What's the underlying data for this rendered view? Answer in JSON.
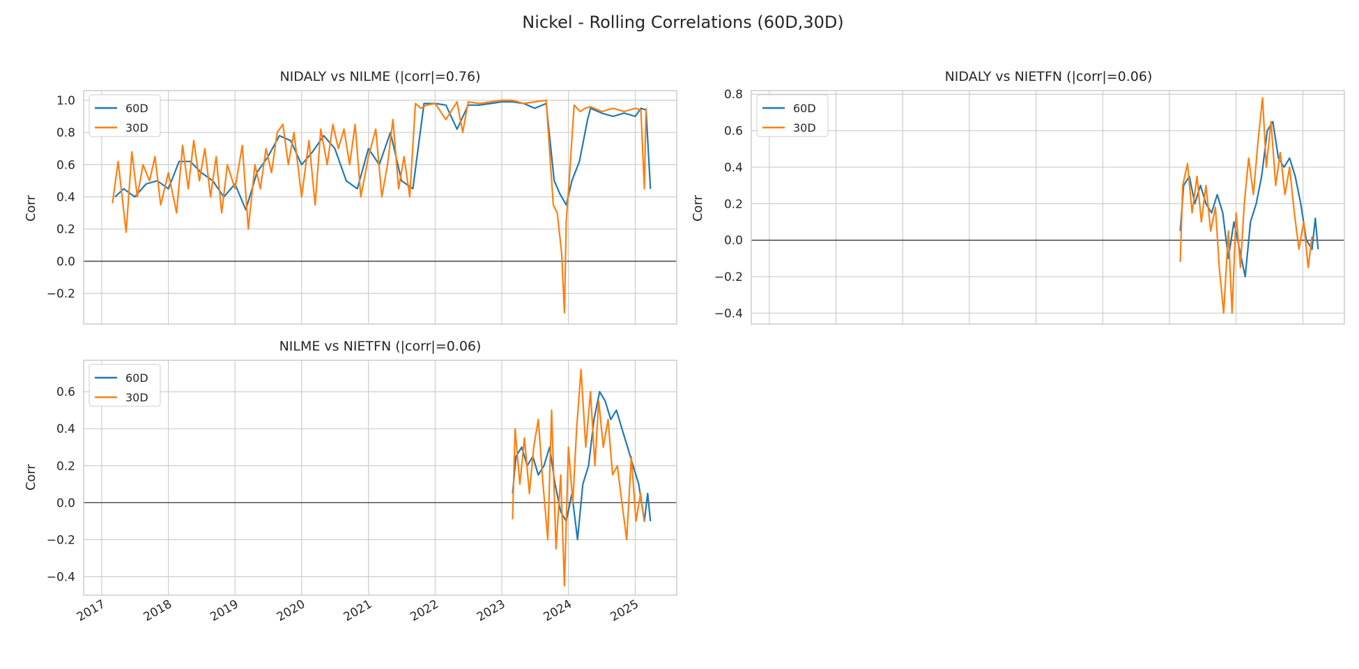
{
  "figure": {
    "suptitle": "Nickel - Rolling Correlations (60D,30D)"
  },
  "colors": {
    "series_60d": "#1f77b4",
    "series_30d": "#ff7f0e",
    "grid": "#cccccc",
    "zero_line": "#262626",
    "axes_edge": "#cccccc"
  },
  "chart_data": [
    {
      "type": "line",
      "title": "NIDALY vs NILME (|corr|=0.76)",
      "xlabel": "",
      "ylabel": "Corr",
      "xlim": [
        "2016-09-24",
        "2025-08-16"
      ],
      "ylim": [
        -0.39,
        1.06
      ],
      "yticks": [
        -0.2,
        0.0,
        0.2,
        0.4,
        0.6,
        0.8,
        1.0
      ],
      "ytick_labels": [
        "−0.2",
        "0.0",
        "0.2",
        "0.4",
        "0.6",
        "0.8",
        "1.0"
      ],
      "xticks": [
        "2017-01-01",
        "2018-01-01",
        "2019-01-01",
        "2020-01-01",
        "2021-01-01",
        "2022-01-01",
        "2023-01-01",
        "2024-01-01",
        "2025-01-01"
      ],
      "xtick_labels": [],
      "grid": true,
      "zero_line": true,
      "legend": {
        "position": "upper-left",
        "entries": [
          "60D",
          "30D"
        ]
      },
      "series": [
        {
          "name": "60D",
          "color": "#1f77b4",
          "x": [
            "2017-03-15",
            "2017-05-01",
            "2017-07-01",
            "2017-09-01",
            "2017-11-01",
            "2018-01-01",
            "2018-03-01",
            "2018-05-01",
            "2018-07-01",
            "2018-09-01",
            "2018-11-01",
            "2019-01-01",
            "2019-03-01",
            "2019-05-01",
            "2019-07-01",
            "2019-09-01",
            "2019-11-01",
            "2020-01-01",
            "2020-03-01",
            "2020-05-01",
            "2020-07-01",
            "2020-09-01",
            "2020-11-01",
            "2021-01-01",
            "2021-03-01",
            "2021-05-01",
            "2021-07-01",
            "2021-09-01",
            "2021-11-01",
            "2022-01-01",
            "2022-03-01",
            "2022-05-01",
            "2022-07-01",
            "2022-09-01",
            "2022-11-01",
            "2023-01-01",
            "2023-03-01",
            "2023-05-01",
            "2023-07-01",
            "2023-09-01",
            "2023-10-15",
            "2023-11-15",
            "2023-12-20",
            "2024-01-20",
            "2024-03-01",
            "2024-04-15",
            "2024-05-01",
            "2024-07-01",
            "2024-09-01",
            "2024-11-01",
            "2025-01-01",
            "2025-02-01",
            "2025-03-01",
            "2025-03-25"
          ],
          "y": [
            0.4,
            0.45,
            0.4,
            0.48,
            0.5,
            0.45,
            0.62,
            0.62,
            0.55,
            0.5,
            0.4,
            0.48,
            0.32,
            0.55,
            0.65,
            0.78,
            0.75,
            0.6,
            0.68,
            0.78,
            0.7,
            0.5,
            0.45,
            0.7,
            0.6,
            0.8,
            0.5,
            0.45,
            0.98,
            0.98,
            0.97,
            0.82,
            0.97,
            0.97,
            0.98,
            0.99,
            0.99,
            0.98,
            0.95,
            0.98,
            0.5,
            0.42,
            0.35,
            0.5,
            0.62,
            0.88,
            0.95,
            0.92,
            0.9,
            0.92,
            0.9,
            0.95,
            0.94,
            0.45
          ]
        },
        {
          "name": "30D",
          "color": "#ff7f0e",
          "x": [
            "2017-03-01",
            "2017-04-01",
            "2017-05-15",
            "2017-06-15",
            "2017-07-15",
            "2017-08-15",
            "2017-09-20",
            "2017-10-20",
            "2017-11-20",
            "2018-01-01",
            "2018-02-15",
            "2018-03-20",
            "2018-04-20",
            "2018-05-20",
            "2018-06-20",
            "2018-07-20",
            "2018-08-20",
            "2018-09-20",
            "2018-10-20",
            "2018-11-20",
            "2019-01-01",
            "2019-02-10",
            "2019-03-15",
            "2019-04-20",
            "2019-05-20",
            "2019-06-20",
            "2019-07-20",
            "2019-08-20",
            "2019-09-20",
            "2019-10-20",
            "2019-11-20",
            "2020-01-01",
            "2020-02-10",
            "2020-03-15",
            "2020-04-15",
            "2020-05-20",
            "2020-06-20",
            "2020-07-20",
            "2020-08-20",
            "2020-09-20",
            "2020-10-20",
            "2020-11-20",
            "2021-01-01",
            "2021-02-10",
            "2021-03-15",
            "2021-04-15",
            "2021-05-15",
            "2021-06-15",
            "2021-07-15",
            "2021-08-15",
            "2021-09-15",
            "2021-10-15",
            "2021-11-15",
            "2022-01-01",
            "2022-03-01",
            "2022-05-01",
            "2022-06-01",
            "2022-07-01",
            "2022-09-01",
            "2022-11-01",
            "2023-01-01",
            "2023-03-01",
            "2023-05-01",
            "2023-07-01",
            "2023-09-01",
            "2023-10-10",
            "2023-11-01",
            "2023-11-25",
            "2023-12-10",
            "2023-12-20",
            "2024-01-05",
            "2024-02-01",
            "2024-03-05",
            "2024-04-01",
            "2024-05-01",
            "2024-07-01",
            "2024-09-01",
            "2024-11-01",
            "2025-01-01",
            "2025-02-01",
            "2025-02-20",
            "2025-03-01"
          ],
          "y": [
            0.36,
            0.62,
            0.18,
            0.68,
            0.4,
            0.6,
            0.5,
            0.65,
            0.35,
            0.55,
            0.3,
            0.72,
            0.45,
            0.75,
            0.5,
            0.7,
            0.4,
            0.65,
            0.3,
            0.6,
            0.45,
            0.72,
            0.2,
            0.6,
            0.45,
            0.7,
            0.55,
            0.8,
            0.85,
            0.6,
            0.8,
            0.4,
            0.75,
            0.35,
            0.82,
            0.6,
            0.85,
            0.7,
            0.82,
            0.6,
            0.85,
            0.4,
            0.65,
            0.82,
            0.4,
            0.6,
            0.88,
            0.45,
            0.65,
            0.4,
            0.98,
            0.95,
            0.97,
            0.98,
            0.88,
            0.99,
            0.8,
            0.99,
            0.98,
            0.99,
            1.0,
            1.0,
            0.98,
            0.99,
            1.0,
            0.35,
            0.3,
            0.05,
            -0.32,
            0.25,
            0.5,
            0.97,
            0.93,
            0.95,
            0.96,
            0.93,
            0.95,
            0.93,
            0.95,
            0.94,
            0.45,
            0.95
          ]
        }
      ]
    },
    {
      "type": "line",
      "title": "NIDALY vs NIETFN (|corr|=0.06)",
      "xlabel": "",
      "ylabel": "Corr",
      "xlim": [
        "2016-09-24",
        "2025-08-16"
      ],
      "ylim": [
        -0.46,
        0.82
      ],
      "yticks": [
        -0.4,
        -0.2,
        0.0,
        0.2,
        0.4,
        0.6,
        0.8
      ],
      "ytick_labels": [
        "−0.4",
        "−0.2",
        "0.0",
        "0.2",
        "0.4",
        "0.6",
        "0.8"
      ],
      "xticks": [
        "2017-01-01",
        "2018-01-01",
        "2019-01-01",
        "2020-01-01",
        "2021-01-01",
        "2022-01-01",
        "2023-01-01",
        "2024-01-01",
        "2025-01-01"
      ],
      "xtick_labels": [],
      "grid": true,
      "zero_line": true,
      "legend": {
        "position": "upper-left",
        "entries": [
          "60D",
          "30D"
        ]
      },
      "series": [
        {
          "name": "60D",
          "color": "#1f77b4",
          "x": [
            "2023-03-01",
            "2023-03-20",
            "2023-04-20",
            "2023-05-20",
            "2023-06-20",
            "2023-07-20",
            "2023-08-20",
            "2023-09-20",
            "2023-10-20",
            "2023-11-20",
            "2023-12-20",
            "2024-01-20",
            "2024-02-20",
            "2024-03-20",
            "2024-04-20",
            "2024-05-20",
            "2024-06-20",
            "2024-07-20",
            "2024-08-20",
            "2024-09-20",
            "2024-10-20",
            "2024-11-20",
            "2024-12-20",
            "2025-01-20",
            "2025-02-20",
            "2025-03-10",
            "2025-03-25"
          ],
          "y": [
            0.05,
            0.3,
            0.35,
            0.2,
            0.3,
            0.2,
            0.15,
            0.25,
            0.15,
            -0.1,
            0.1,
            -0.05,
            -0.2,
            0.1,
            0.2,
            0.35,
            0.6,
            0.65,
            0.45,
            0.4,
            0.45,
            0.35,
            0.2,
            0.0,
            -0.05,
            0.12,
            -0.05
          ]
        },
        {
          "name": "30D",
          "color": "#ff7f0e",
          "x": [
            "2023-03-01",
            "2023-03-15",
            "2023-04-10",
            "2023-05-05",
            "2023-06-01",
            "2023-06-25",
            "2023-07-20",
            "2023-08-15",
            "2023-09-10",
            "2023-10-01",
            "2023-10-25",
            "2023-11-20",
            "2023-12-10",
            "2024-01-01",
            "2024-01-25",
            "2024-02-15",
            "2024-03-10",
            "2024-04-05",
            "2024-05-01",
            "2024-05-25",
            "2024-06-15",
            "2024-07-10",
            "2024-08-05",
            "2024-08-30",
            "2024-09-25",
            "2024-10-20",
            "2024-11-15",
            "2024-12-10",
            "2025-01-05",
            "2025-01-30",
            "2025-02-20"
          ],
          "y": [
            -0.12,
            0.3,
            0.42,
            0.15,
            0.35,
            0.1,
            0.3,
            0.05,
            0.18,
            -0.15,
            -0.4,
            0.05,
            -0.4,
            0.15,
            -0.15,
            0.2,
            0.45,
            0.25,
            0.55,
            0.78,
            0.4,
            0.65,
            0.3,
            0.48,
            0.25,
            0.4,
            0.15,
            -0.05,
            0.1,
            -0.15,
            0.02
          ]
        }
      ]
    },
    {
      "type": "line",
      "title": "NILME vs NIETFN (|corr|=0.06)",
      "xlabel": "",
      "ylabel": "Corr",
      "xlim": [
        "2016-09-24",
        "2025-08-16"
      ],
      "ylim": [
        -0.5,
        0.77
      ],
      "yticks": [
        -0.4,
        -0.2,
        0.0,
        0.2,
        0.4,
        0.6
      ],
      "ytick_labels": [
        "−0.4",
        "−0.2",
        "0.0",
        "0.2",
        "0.4",
        "0.6"
      ],
      "xticks": [
        "2017-01-01",
        "2018-01-01",
        "2019-01-01",
        "2020-01-01",
        "2021-01-01",
        "2022-01-01",
        "2023-01-01",
        "2024-01-01",
        "2025-01-01"
      ],
      "xtick_labels": [
        "2017",
        "2018",
        "2019",
        "2020",
        "2021",
        "2022",
        "2023",
        "2024",
        "2025"
      ],
      "grid": true,
      "zero_line": true,
      "legend": {
        "position": "upper-left",
        "entries": [
          "60D",
          "30D"
        ]
      },
      "series": [
        {
          "name": "60D",
          "color": "#1f77b4",
          "x": [
            "2023-03-01",
            "2023-03-20",
            "2023-04-20",
            "2023-05-20",
            "2023-06-20",
            "2023-07-20",
            "2023-08-20",
            "2023-09-20",
            "2023-10-20",
            "2023-11-20",
            "2023-12-20",
            "2024-01-20",
            "2024-02-20",
            "2024-03-20",
            "2024-04-20",
            "2024-05-20",
            "2024-06-20",
            "2024-07-20",
            "2024-08-20",
            "2024-09-20",
            "2024-10-20",
            "2024-11-20",
            "2024-12-20",
            "2025-01-20",
            "2025-02-20",
            "2025-03-10",
            "2025-03-25"
          ],
          "y": [
            0.05,
            0.25,
            0.3,
            0.2,
            0.25,
            0.15,
            0.2,
            0.3,
            0.1,
            -0.05,
            -0.1,
            0.05,
            -0.2,
            0.1,
            0.2,
            0.45,
            0.6,
            0.55,
            0.45,
            0.5,
            0.4,
            0.3,
            0.2,
            0.1,
            -0.1,
            0.05,
            -0.1
          ]
        },
        {
          "name": "30D",
          "color": "#ff7f0e",
          "x": [
            "2023-03-01",
            "2023-03-15",
            "2023-04-10",
            "2023-05-05",
            "2023-06-01",
            "2023-06-25",
            "2023-07-20",
            "2023-08-15",
            "2023-09-10",
            "2023-10-01",
            "2023-10-25",
            "2023-11-20",
            "2023-12-10",
            "2024-01-01",
            "2024-01-25",
            "2024-02-15",
            "2024-03-10",
            "2024-04-05",
            "2024-05-01",
            "2024-05-25",
            "2024-06-15",
            "2024-07-10",
            "2024-08-05",
            "2024-08-30",
            "2024-09-25",
            "2024-10-20",
            "2024-11-15",
            "2024-12-10",
            "2025-01-05",
            "2025-01-30",
            "2025-02-20"
          ],
          "y": [
            -0.09,
            0.4,
            0.1,
            0.35,
            0.05,
            0.3,
            0.45,
            0.1,
            -0.2,
            0.5,
            -0.25,
            0.15,
            -0.45,
            0.3,
            0.0,
            0.4,
            0.72,
            0.3,
            0.6,
            0.2,
            0.55,
            0.3,
            0.45,
            0.15,
            0.2,
            0.0,
            -0.2,
            0.25,
            -0.1,
            0.05,
            -0.1
          ]
        }
      ]
    }
  ]
}
